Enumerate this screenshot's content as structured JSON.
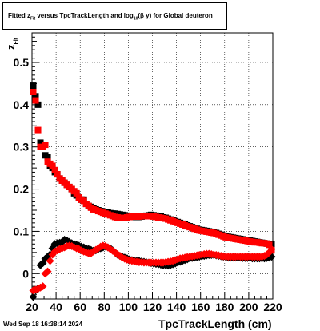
{
  "title": {
    "prefix": "Fitted  z",
    "sub1": "Fit",
    "middle": "  versus TpcTrackLength and log",
    "sub2": "10",
    "suffix": "(β γ) for Global deuteron"
  },
  "footer": {
    "date": "Wed Sep 18 16:38:14 2024"
  },
  "chart_data": {
    "type": "scatter",
    "xlabel": "TpcTrackLength (cm)",
    "ylabel": "z",
    "ylabel_sub": "Fit",
    "xlim": [
      20,
      220
    ],
    "ylim": [
      -0.06,
      0.57
    ],
    "xticks": [
      "20",
      "40",
      "60",
      "80",
      "100",
      "120",
      "140",
      "160",
      "180",
      "200",
      "220"
    ],
    "yticks": [
      "0",
      "0.1",
      "0.2",
      "0.3",
      "0.4",
      "0.5"
    ],
    "grid": true,
    "series": [
      {
        "color": "#000000",
        "marker": "square",
        "x": [
          21,
          23,
          25,
          27,
          29,
          31,
          33,
          35,
          37,
          39,
          41,
          43,
          45,
          47,
          49,
          51,
          53,
          55,
          57,
          59,
          61,
          63,
          65,
          67,
          69,
          71,
          73,
          75,
          77,
          79,
          81,
          83,
          85,
          87,
          89,
          91,
          93,
          95,
          97,
          99,
          101,
          103,
          105,
          107,
          109,
          111,
          113,
          115,
          117,
          119,
          121,
          123,
          125,
          127,
          129,
          131,
          133,
          135,
          137,
          139,
          141,
          143,
          145,
          147,
          149,
          151,
          153,
          155,
          157,
          159,
          161,
          163,
          165,
          167,
          169,
          171,
          173,
          175,
          177,
          179,
          181,
          183,
          185,
          187,
          189,
          191,
          193,
          195,
          197,
          199,
          201,
          203,
          205,
          207,
          209,
          211,
          213,
          215,
          217,
          219
        ],
        "y": [
          0.445,
          0.42,
          0.4,
          0.31,
          0.305,
          0.28,
          0.275,
          0.255,
          0.25,
          0.24,
          0.235,
          0.225,
          0.22,
          0.215,
          0.21,
          0.205,
          0.2,
          0.19,
          0.185,
          0.18,
          0.175,
          0.175,
          0.165,
          0.16,
          0.158,
          0.155,
          0.152,
          0.15,
          0.148,
          0.147,
          0.146,
          0.145,
          0.143,
          0.142,
          0.142,
          0.141,
          0.14,
          0.139,
          0.138,
          0.137,
          0.136,
          0.135,
          0.134,
          0.134,
          0.134,
          0.135,
          0.136,
          0.137,
          0.138,
          0.139,
          0.138,
          0.137,
          0.136,
          0.135,
          0.133,
          0.132,
          0.13,
          0.128,
          0.126,
          0.124,
          0.122,
          0.12,
          0.118,
          0.116,
          0.114,
          0.112,
          0.11,
          0.108,
          0.106,
          0.104,
          0.103,
          0.102,
          0.101,
          0.1,
          0.099,
          0.098,
          0.096,
          0.094,
          0.092,
          0.09,
          0.088,
          0.087,
          0.086,
          0.085,
          0.084,
          0.083,
          0.082,
          0.081,
          0.08,
          0.079,
          0.078,
          0.077,
          0.076,
          0.075,
          0.074,
          0.073,
          0.072,
          0.071,
          0.07,
          0.07
        ]
      },
      {
        "color": "#000000",
        "marker": "diamond",
        "x": [
          21,
          23,
          25,
          27,
          29,
          31,
          33,
          35,
          37,
          39,
          41,
          43,
          45,
          47,
          49,
          51,
          53,
          55,
          57,
          59,
          61,
          63,
          65,
          67,
          69,
          71,
          73,
          75,
          77,
          79,
          81,
          83,
          85,
          87,
          89,
          91,
          93,
          95,
          97,
          99,
          101,
          103,
          105,
          107,
          109,
          111,
          113,
          115,
          117,
          119,
          121,
          123,
          125,
          127,
          129,
          131,
          133,
          135,
          137,
          139,
          141,
          143,
          145,
          147,
          149,
          151,
          153,
          155,
          157,
          159,
          161,
          163,
          165,
          167,
          169,
          171,
          173,
          175,
          177,
          179,
          181,
          183,
          185,
          187,
          189,
          191,
          193,
          195,
          197,
          199,
          201,
          203,
          205,
          207,
          209,
          211,
          213,
          215,
          217,
          219
        ],
        "y": [
          -0.055,
          -0.04,
          -0.035,
          0.02,
          0.025,
          0.035,
          0.04,
          0.045,
          0.06,
          0.07,
          0.072,
          0.073,
          0.075,
          0.08,
          0.078,
          0.075,
          0.072,
          0.07,
          0.068,
          0.066,
          0.064,
          0.062,
          0.06,
          0.058,
          0.056,
          0.054,
          0.055,
          0.058,
          0.06,
          0.062,
          0.064,
          0.062,
          0.06,
          0.055,
          0.05,
          0.045,
          0.042,
          0.04,
          0.038,
          0.036,
          0.034,
          0.032,
          0.031,
          0.03,
          0.03,
          0.029,
          0.028,
          0.027,
          0.026,
          0.025,
          0.024,
          0.023,
          0.022,
          0.021,
          0.02,
          0.02,
          0.019,
          0.02,
          0.022,
          0.024,
          0.026,
          0.028,
          0.03,
          0.032,
          0.034,
          0.036,
          0.037,
          0.038,
          0.039,
          0.04,
          0.041,
          0.042,
          0.043,
          0.044,
          0.044,
          0.044,
          0.043,
          0.042,
          0.041,
          0.04,
          0.039,
          0.038,
          0.038,
          0.038,
          0.038,
          0.038,
          0.038,
          0.037,
          0.037,
          0.037,
          0.037,
          0.036,
          0.036,
          0.036,
          0.036,
          0.036,
          0.036,
          0.037,
          0.038,
          0.04
        ]
      },
      {
        "color": "#ff0000",
        "marker": "square",
        "x": [
          21,
          23,
          25,
          27,
          29,
          31,
          33,
          35,
          37,
          39,
          41,
          43,
          45,
          47,
          49,
          51,
          53,
          55,
          57,
          59,
          61,
          63,
          65,
          67,
          69,
          71,
          73,
          75,
          77,
          79,
          81,
          83,
          85,
          87,
          89,
          91,
          93,
          95,
          97,
          99,
          101,
          103,
          105,
          107,
          109,
          111,
          113,
          115,
          117,
          119,
          121,
          123,
          125,
          127,
          129,
          131,
          133,
          135,
          137,
          139,
          141,
          143,
          145,
          147,
          149,
          151,
          153,
          155,
          157,
          159,
          161,
          163,
          165,
          167,
          169,
          171,
          173,
          175,
          177,
          179,
          181,
          183,
          185,
          187,
          189,
          191,
          193,
          195,
          197,
          199,
          201,
          203,
          205,
          207,
          209,
          211,
          213,
          215,
          217,
          219
        ],
        "y": [
          0.43,
          0.41,
          0.34,
          0.3,
          0.3,
          0.305,
          0.265,
          0.26,
          0.255,
          0.245,
          0.235,
          0.225,
          0.22,
          0.215,
          0.21,
          0.205,
          0.2,
          0.195,
          0.19,
          0.18,
          0.175,
          0.172,
          0.165,
          0.16,
          0.156,
          0.152,
          0.15,
          0.148,
          0.146,
          0.144,
          0.142,
          0.14,
          0.138,
          0.136,
          0.134,
          0.133,
          0.132,
          0.132,
          0.132,
          0.133,
          0.134,
          0.135,
          0.135,
          0.135,
          0.135,
          0.136,
          0.136,
          0.136,
          0.136,
          0.136,
          0.135,
          0.134,
          0.133,
          0.132,
          0.131,
          0.13,
          0.128,
          0.126,
          0.124,
          0.122,
          0.12,
          0.118,
          0.116,
          0.114,
          0.112,
          0.11,
          0.108,
          0.106,
          0.104,
          0.102,
          0.101,
          0.1,
          0.099,
          0.098,
          0.097,
          0.096,
          0.094,
          0.092,
          0.09,
          0.088,
          0.086,
          0.085,
          0.084,
          0.083,
          0.082,
          0.081,
          0.08,
          0.079,
          0.078,
          0.077,
          0.076,
          0.075,
          0.074,
          0.074,
          0.073,
          0.072,
          0.072,
          0.071,
          0.068,
          0.055
        ]
      },
      {
        "color": "#ff0000",
        "marker": "diamond",
        "x": [
          21,
          23,
          25,
          27,
          29,
          31,
          33,
          35,
          37,
          39,
          41,
          43,
          45,
          47,
          49,
          51,
          53,
          55,
          57,
          59,
          61,
          63,
          65,
          67,
          69,
          71,
          73,
          75,
          77,
          79,
          81,
          83,
          85,
          87,
          89,
          91,
          93,
          95,
          97,
          99,
          101,
          103,
          105,
          107,
          109,
          111,
          113,
          115,
          117,
          119,
          121,
          123,
          125,
          127,
          129,
          131,
          133,
          135,
          137,
          139,
          141,
          143,
          145,
          147,
          149,
          151,
          153,
          155,
          157,
          159,
          161,
          163,
          165,
          167,
          169,
          171,
          173,
          175,
          177,
          179,
          181,
          183,
          185,
          187,
          189,
          191,
          193,
          195,
          197,
          199,
          201,
          203,
          205,
          207,
          209,
          211,
          213,
          215,
          217,
          219
        ],
        "y": [
          -0.04,
          -0.038,
          -0.036,
          -0.033,
          -0.03,
          0.0,
          0.005,
          0.03,
          0.045,
          0.052,
          0.055,
          0.058,
          0.06,
          0.062,
          0.065,
          0.066,
          0.065,
          0.062,
          0.06,
          0.058,
          0.055,
          0.052,
          0.05,
          0.048,
          0.048,
          0.052,
          0.056,
          0.06,
          0.064,
          0.066,
          0.065,
          0.062,
          0.058,
          0.054,
          0.05,
          0.046,
          0.042,
          0.038,
          0.035,
          0.033,
          0.031,
          0.03,
          0.029,
          0.028,
          0.027,
          0.027,
          0.026,
          0.026,
          0.026,
          0.026,
          0.026,
          0.026,
          0.026,
          0.026,
          0.026,
          0.027,
          0.028,
          0.029,
          0.03,
          0.032,
          0.034,
          0.036,
          0.037,
          0.038,
          0.039,
          0.04,
          0.041,
          0.042,
          0.043,
          0.044,
          0.045,
          0.046,
          0.047,
          0.047,
          0.046,
          0.045,
          0.044,
          0.043,
          0.042,
          0.041,
          0.04,
          0.04,
          0.04,
          0.04,
          0.04,
          0.04,
          0.04,
          0.04,
          0.04,
          0.04,
          0.04,
          0.04,
          0.04,
          0.04,
          0.04,
          0.04,
          0.042,
          0.045,
          0.05,
          0.058
        ]
      }
    ]
  }
}
